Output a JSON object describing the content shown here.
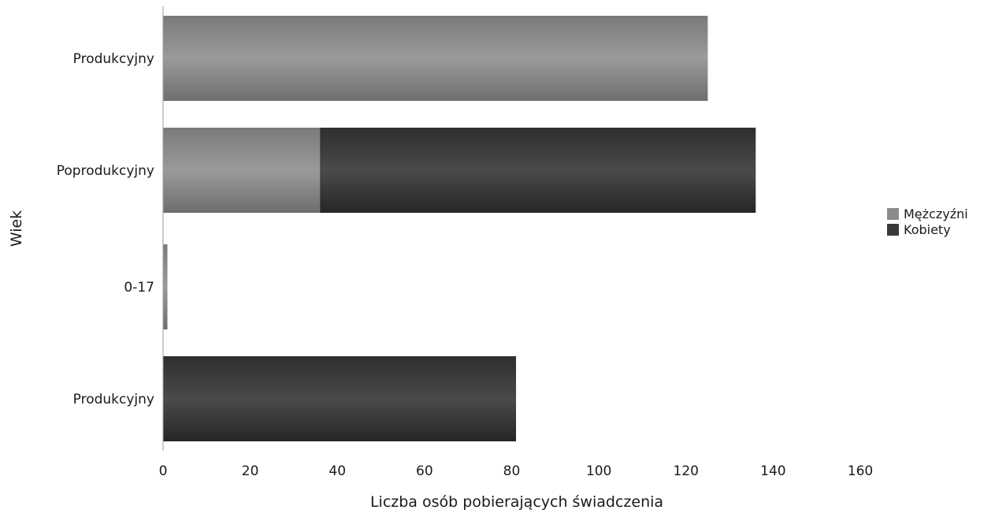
{
  "chart_data": {
    "type": "bar",
    "orientation": "horizontal",
    "stacked": true,
    "categories": [
      "Produkcyjny",
      "Poprodukcyjny",
      "0-17",
      "Produkcyjny"
    ],
    "series": [
      {
        "name": "Mężczyźni",
        "color": "#8c8c8c",
        "values": [
          125,
          36,
          1,
          0
        ]
      },
      {
        "name": "Kobiety",
        "color": "#3a3a3a",
        "values": [
          0,
          100,
          0,
          81
        ]
      }
    ],
    "xlabel": "Liczba osób pobierających świadczenia",
    "ylabel": "Wiek",
    "xlim": [
      0,
      160
    ],
    "xticks": [
      "0",
      "20",
      "40",
      "60",
      "80",
      "100",
      "120",
      "140",
      "160"
    ],
    "grid": false,
    "legend_position": "right"
  }
}
